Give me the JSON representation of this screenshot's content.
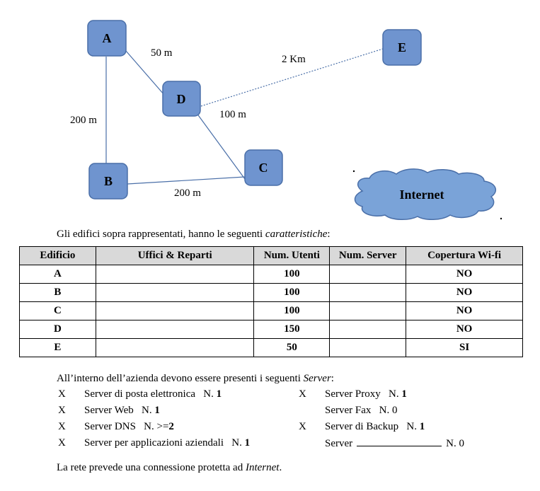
{
  "diagram": {
    "nodes": [
      {
        "id": "A",
        "label": "A"
      },
      {
        "id": "B",
        "label": "B"
      },
      {
        "id": "C",
        "label": "C"
      },
      {
        "id": "D",
        "label": "D"
      },
      {
        "id": "E",
        "label": "E"
      }
    ],
    "edges": [
      {
        "from": "A",
        "to": "D",
        "label": "50 m"
      },
      {
        "from": "A",
        "to": "B",
        "label": "200 m"
      },
      {
        "from": "D",
        "to": "C",
        "label": "100 m"
      },
      {
        "from": "B",
        "to": "C",
        "label": "200 m"
      },
      {
        "from": "D",
        "to": "E",
        "label": "2 Km",
        "style": "dotted"
      }
    ],
    "internet_label": "Internet",
    "colors": {
      "node_fill": "#6f94cf",
      "node_stroke": "#4a6fa8",
      "cloud_fill": "#7aa3d8"
    }
  },
  "intro": {
    "text": "Gli edifici sopra rappresentati, hanno le seguenti ",
    "emphasis": "caratteristiche",
    "suffix": ":"
  },
  "table": {
    "headers": [
      "Edificio",
      "Uffici & Reparti",
      "Num. Utenti",
      "Num. Server",
      "Copertura Wi-fi"
    ],
    "rows": [
      [
        "A",
        "",
        "100",
        "",
        "NO"
      ],
      [
        "B",
        "",
        "100",
        "",
        "NO"
      ],
      [
        "C",
        "",
        "100",
        "",
        "NO"
      ],
      [
        "D",
        "",
        "150",
        "",
        "NO"
      ],
      [
        "E",
        "",
        "50",
        "",
        "SI"
      ]
    ]
  },
  "servers": {
    "intro_text": "All’interno dell’azienda devono essere presenti i seguenti ",
    "intro_emphasis": "Server",
    "intro_suffix": ":",
    "left": [
      {
        "mark": "X",
        "label": "Server di posta elettronica",
        "count_prefix": "N. ",
        "count": "1"
      },
      {
        "mark": "X",
        "label": "Server Web",
        "count_prefix": "N. ",
        "count": "1"
      },
      {
        "mark": "X",
        "label": "Server DNS",
        "count_prefix": "N. >=",
        "count": "2"
      },
      {
        "mark": "X",
        "label": "Server per applicazioni aziendali",
        "count_prefix": "N. ",
        "count": "1"
      }
    ],
    "right": [
      {
        "mark": "X",
        "label": "Server Proxy",
        "count_prefix": "N. ",
        "count": "1"
      },
      {
        "mark": "",
        "label": "Server Fax",
        "count_prefix": "N. ",
        "count": "0"
      },
      {
        "mark": "X",
        "label": "Server di Backup",
        "count_prefix": "N. ",
        "count": "1"
      },
      {
        "mark": "",
        "label": "Server",
        "count_prefix": "N. ",
        "count": "0"
      }
    ]
  },
  "footer": {
    "text": "La rete prevede una connessione protetta ad ",
    "emphasis": "Internet",
    "suffix": "."
  }
}
